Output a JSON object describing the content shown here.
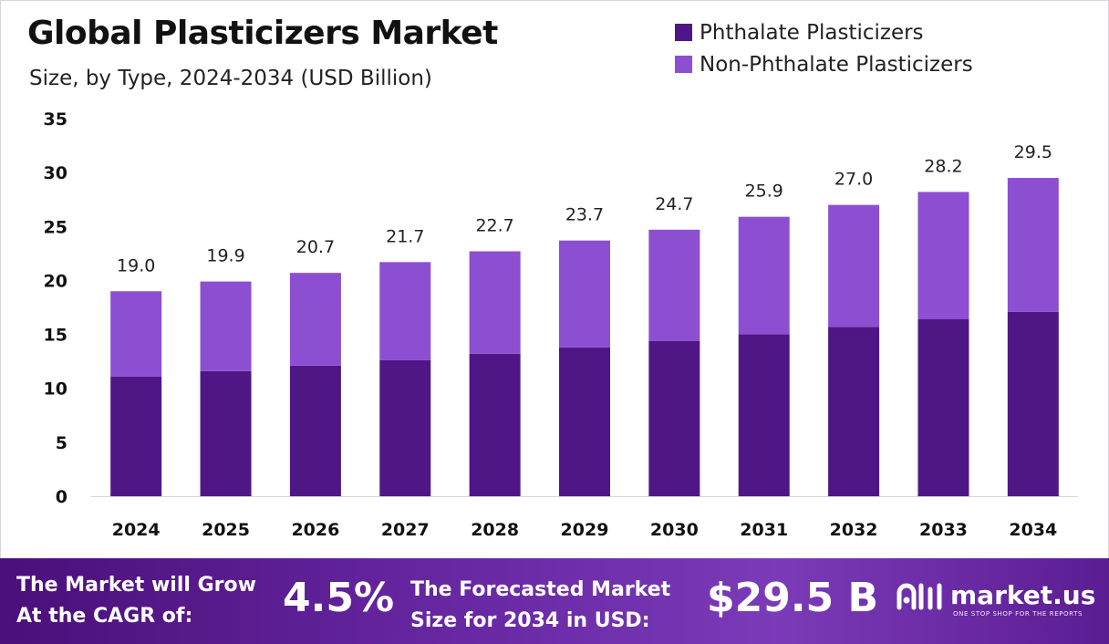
{
  "title": "Global Plasticizers Market",
  "subtitle": "Size, by Type, 2024-2034 (USD Billion)",
  "legend": [
    {
      "label": "Phthalate Plasticizers",
      "color": "#4f1786"
    },
    {
      "label": "Non-Phthalate Plasticizers",
      "color": "#8d4fd1"
    }
  ],
  "chart_data": {
    "type": "bar",
    "stacked": true,
    "categories": [
      "2024",
      "2025",
      "2026",
      "2027",
      "2028",
      "2029",
      "2030",
      "2031",
      "2032",
      "2033",
      "2034"
    ],
    "series": [
      {
        "name": "Phthalate Plasticizers",
        "color": "#4f1786",
        "values": [
          11.1,
          11.6,
          12.1,
          12.6,
          13.2,
          13.8,
          14.4,
          15.0,
          15.7,
          16.4,
          17.1
        ]
      },
      {
        "name": "Non-Phthalate Plasticizers",
        "color": "#8d4fd1",
        "values": [
          7.9,
          8.3,
          8.6,
          9.1,
          9.5,
          9.9,
          10.3,
          10.9,
          11.3,
          11.8,
          12.4
        ]
      }
    ],
    "totals": [
      "19.0",
      "19.9",
      "20.7",
      "21.7",
      "22.7",
      "23.7",
      "24.7",
      "25.9",
      "27.0",
      "28.2",
      "29.5"
    ],
    "yticks": [
      "0",
      "5",
      "10",
      "15",
      "20",
      "25",
      "30",
      "35"
    ],
    "ylim": [
      0,
      35
    ],
    "grid": false,
    "legend_position": "top-right"
  },
  "footer": {
    "cagr_label_line1": "The Market will Grow",
    "cagr_label_line2": "At the CAGR of:",
    "cagr_value": "4.5%",
    "forecast_label_line1": "The Forecasted Market",
    "forecast_label_line2": "Size for 2034 in USD:",
    "forecast_value": "$29.5 B",
    "brand": "market.us",
    "brand_tagline": "ONE STOP SHOP FOR THE REPORTS"
  }
}
